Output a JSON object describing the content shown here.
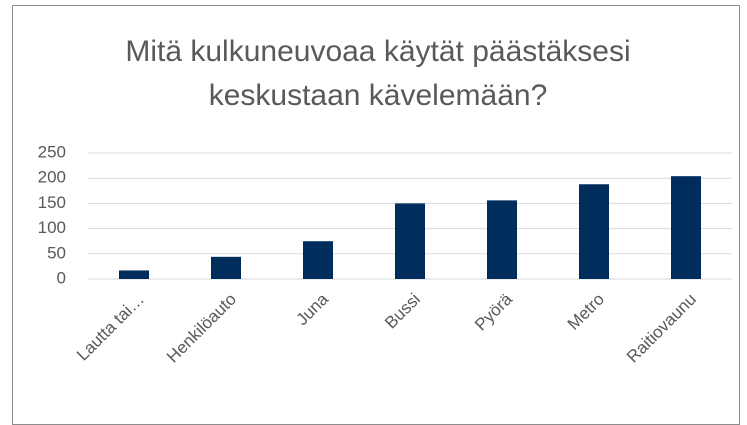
{
  "chart_data": {
    "type": "bar",
    "title": "Mitä kulkuneuvoaa käytät päästäksesi keskustaan kävelemään?",
    "categories": [
      "Lautta tai…",
      "Henkilöauto",
      "Juna",
      "Bussi",
      "Pyörä",
      "Metro",
      "Raitiovaunu"
    ],
    "values": [
      17,
      44,
      75,
      150,
      156,
      188,
      204
    ],
    "color": "#002d5c",
    "ylim": [
      0,
      250
    ],
    "yticks": [
      0,
      50,
      100,
      150,
      200,
      250
    ],
    "grid": true
  }
}
